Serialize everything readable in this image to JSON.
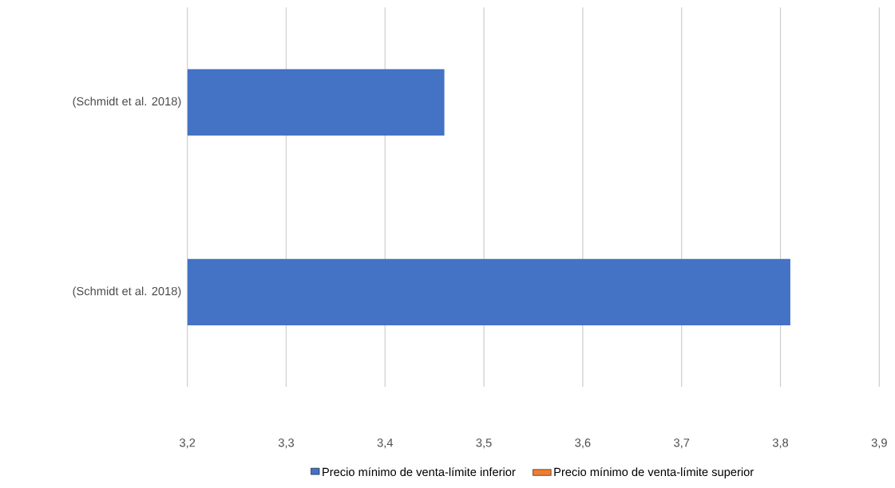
{
  "chart_data": {
    "type": "bar",
    "orientation": "horizontal",
    "stacked": true,
    "categories": [
      "(Schmidt et al. 2018)",
      "(Schmidt et al. 2018)"
    ],
    "series": [
      {
        "name": "Precio mínimo de venta-límite inferior",
        "color": "#4472c4",
        "values": [
          3.46,
          3.81
        ]
      },
      {
        "name": "Precio mínimo de venta-límite superior",
        "color": "#ed7d31",
        "values": [
          null,
          null
        ]
      }
    ],
    "xlim": [
      3.2,
      3.9
    ],
    "xticks": [
      {
        "value": 3.2,
        "label": "3,2"
      },
      {
        "value": 3.3,
        "label": "3,3"
      },
      {
        "value": 3.4,
        "label": "3,4"
      },
      {
        "value": 3.5,
        "label": "3,5"
      },
      {
        "value": 3.6,
        "label": "3,6"
      },
      {
        "value": 3.7,
        "label": "3,7"
      },
      {
        "value": 3.8,
        "label": "3,8"
      },
      {
        "value": 3.9,
        "label": "3,9"
      }
    ],
    "grid": "x",
    "legend": "bottom"
  }
}
